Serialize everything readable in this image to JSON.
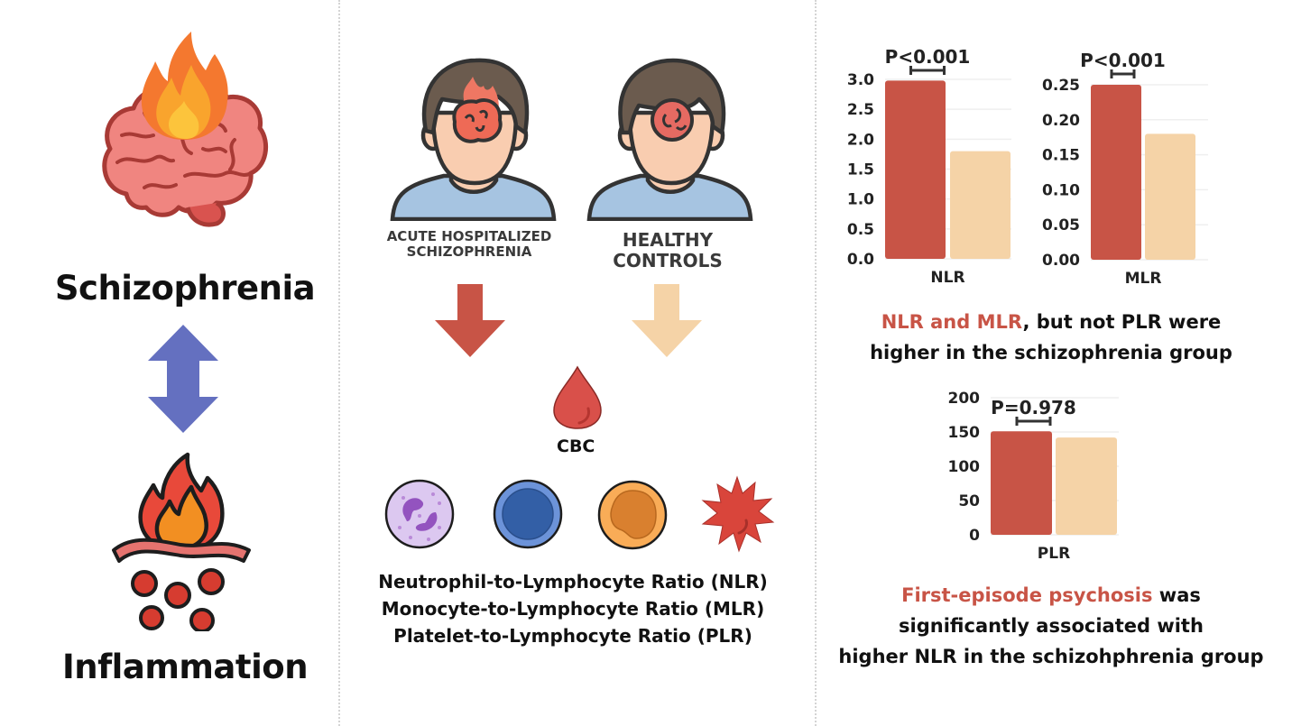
{
  "left_panel": {
    "top_title": "Schizophrenia",
    "bottom_title": "Inflammation"
  },
  "middle_panel": {
    "group_patient": [
      "ACUTE HOSPITALIZED",
      "SCHIZOPHRENIA"
    ],
    "group_control": [
      "HEALTHY",
      "CONTROLS"
    ],
    "cbc_label": "CBC",
    "ratios": [
      "Neutrophil-to-Lymphocyte Ratio (NLR)",
      "Monocyte-to-Lymphocyte Ratio (MLR)",
      "Platelet-to-Lymphocyte Ratio (PLR)"
    ]
  },
  "right_panel": {
    "summary1": {
      "highlight": "NLR and MLR",
      "rest_line1": ", but not PLR were",
      "line2": "higher in the schizophrenia group"
    },
    "summary2": {
      "highlight": "First-episode psychosis",
      "rest_line1": " was",
      "line2": "significantly associated with",
      "line3": "higher NLR in the schizohphrenia group"
    }
  },
  "colors": {
    "schizophrenia": "#c85446",
    "control": "#f5d3a7",
    "arrow_bidirectional": "#6470c0",
    "highlight_text": "#c85446"
  },
  "chart_data": [
    {
      "type": "bar",
      "title": "",
      "categories": [
        "NLR"
      ],
      "xlabel": "NLR",
      "ylabel": "",
      "ylim": [
        0,
        3.0
      ],
      "yticks": [
        "0.0",
        "0.5",
        "1.0",
        "1.5",
        "2.0",
        "2.5",
        "3.0"
      ],
      "series": [
        {
          "name": "Acute hospitalized schizophrenia",
          "values": [
            2.98
          ]
        },
        {
          "name": "Healthy controls",
          "values": [
            1.8
          ]
        }
      ],
      "annotation": "P<0.001",
      "grid": true
    },
    {
      "type": "bar",
      "title": "",
      "categories": [
        "MLR"
      ],
      "xlabel": "MLR",
      "ylabel": "",
      "ylim": [
        0,
        0.25
      ],
      "yticks": [
        "0.00",
        "0.05",
        "0.10",
        "0.15",
        "0.20",
        "0.25"
      ],
      "series": [
        {
          "name": "Acute hospitalized schizophrenia",
          "values": [
            0.25
          ]
        },
        {
          "name": "Healthy controls",
          "values": [
            0.18
          ]
        }
      ],
      "annotation": "P<0.001",
      "grid": true
    },
    {
      "type": "bar",
      "title": "",
      "categories": [
        "PLR"
      ],
      "xlabel": "PLR",
      "ylabel": "",
      "ylim": [
        0,
        200
      ],
      "yticks": [
        "0",
        "50",
        "100",
        "150",
        "200"
      ],
      "series": [
        {
          "name": "Acute hospitalized schizophrenia",
          "values": [
            151
          ]
        },
        {
          "name": "Healthy controls",
          "values": [
            142
          ]
        }
      ],
      "annotation": "P=0.978",
      "grid": true
    }
  ]
}
